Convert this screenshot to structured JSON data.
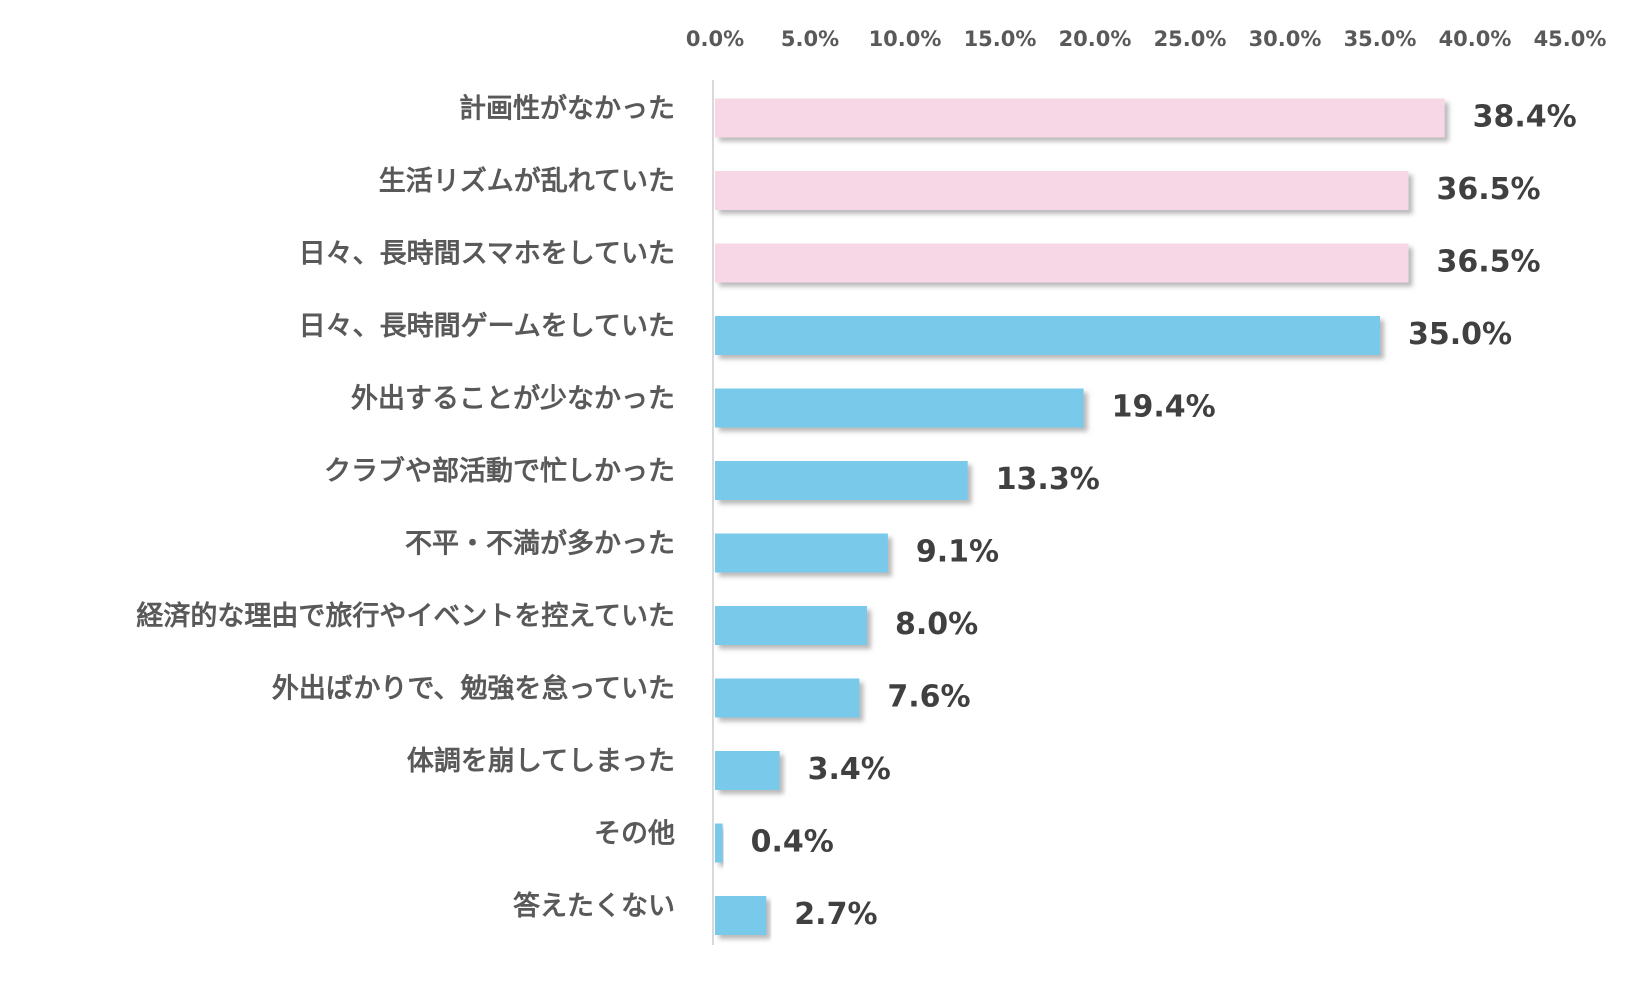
{
  "chart_data": {
    "type": "bar",
    "orientation": "horizontal",
    "title": "",
    "xlabel": "",
    "ylabel": "",
    "xlim": [
      0,
      45
    ],
    "x_ticks": [
      0,
      5,
      10,
      15,
      20,
      25,
      30,
      35,
      40,
      45
    ],
    "x_tick_labels": [
      "0.0%",
      "5.0%",
      "10.0%",
      "15.0%",
      "20.0%",
      "25.0%",
      "30.0%",
      "35.0%",
      "40.0%",
      "45.0%"
    ],
    "axis_position": "top",
    "grid": false,
    "legend": "none",
    "categories": [
      "計画性がなかった",
      "生活リズムが乱れていた",
      "日々、長時間スマホをしていた",
      "日々、長時間ゲームをしていた",
      "外出することが少なかった",
      "クラブや部活動で忙しかった",
      "不平・不満が多かった",
      "経済的な理由で旅行やイベントを控えていた",
      "外出ばかりで、勉強を怠っていた",
      "体調を崩してしまった",
      "その他",
      "答えたくない"
    ],
    "values": [
      38.4,
      36.5,
      36.5,
      35.0,
      19.4,
      13.3,
      9.1,
      8.0,
      7.6,
      3.4,
      0.4,
      2.7
    ],
    "value_labels": [
      "38.4%",
      "36.5%",
      "36.5%",
      "35.0%",
      "19.4%",
      "13.3%",
      "9.1%",
      "8.0%",
      "7.6%",
      "3.4%",
      "0.4%",
      "2.7%"
    ],
    "bar_groups": [
      "highlight",
      "highlight",
      "highlight",
      "normal",
      "normal",
      "normal",
      "normal",
      "normal",
      "normal",
      "normal",
      "normal",
      "normal"
    ]
  },
  "colors": {
    "highlight": "#f7d7e6",
    "normal": "#79c9ea",
    "axis": "#d9d9d9",
    "shadow": "#8c8c8c"
  }
}
